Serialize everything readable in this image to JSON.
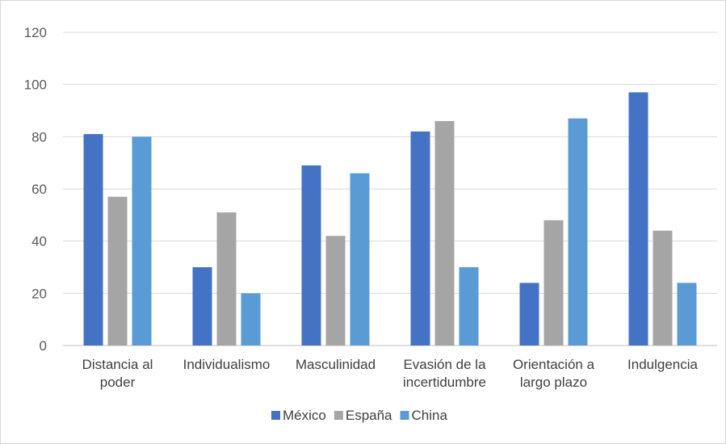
{
  "chart_data": {
    "type": "bar",
    "categories": [
      [
        "Distancia al",
        "poder"
      ],
      [
        "Individualismo"
      ],
      [
        "Masculinidad"
      ],
      [
        "Evasión de la",
        "incertidumbre"
      ],
      [
        "Orientación a",
        "largo plazo"
      ],
      [
        "Indulgencia"
      ]
    ],
    "series": [
      {
        "name": "México",
        "color": "#4472c4",
        "values": [
          81,
          30,
          69,
          82,
          24,
          97
        ]
      },
      {
        "name": "España",
        "color": "#a5a5a5",
        "values": [
          57,
          51,
          42,
          86,
          48,
          44
        ]
      },
      {
        "name": "China",
        "color": "#5b9bd5",
        "values": [
          80,
          20,
          66,
          30,
          87,
          24
        ]
      }
    ],
    "ylim": [
      0,
      120
    ],
    "yticks": [
      0,
      20,
      40,
      60,
      80,
      100,
      120
    ],
    "grid": true,
    "legend": "bottom"
  }
}
